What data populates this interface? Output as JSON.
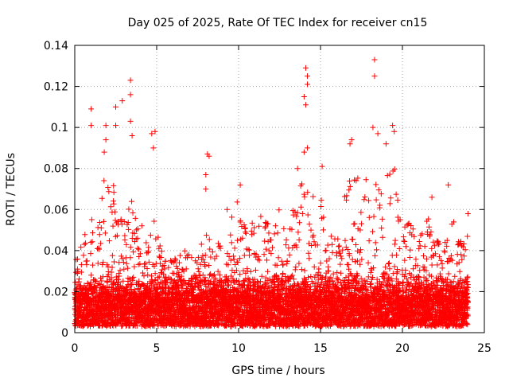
{
  "chart_data": {
    "type": "scatter",
    "title": "Day 025 of 2025, Rate Of TEC Index for receiver cn15",
    "xlabel": "GPS time / hours",
    "ylabel": "ROTI / TECUs",
    "xlim": [
      0,
      25
    ],
    "ylim": [
      0,
      0.14
    ],
    "xticks": [
      0,
      5,
      10,
      15,
      20,
      25
    ],
    "yticks": [
      0,
      0.02,
      0.04,
      0.06,
      0.08,
      0.1,
      0.12,
      0.14
    ],
    "xtick_labels": [
      "0",
      "5",
      "10",
      "15",
      "20",
      "25"
    ],
    "ytick_labels": [
      "0",
      "0.02",
      "0.04",
      "0.06",
      "0.08",
      "0.1",
      "0.12",
      "0.14"
    ],
    "grid": true,
    "marker": "+",
    "marker_color": "#ff0000",
    "data_range_hours": [
      0,
      24
    ],
    "baseline_roti": [
      0.003,
      0.025
    ],
    "notable_points": [
      {
        "x": 1.0,
        "y": 0.109
      },
      {
        "x": 1.0,
        "y": 0.101
      },
      {
        "x": 1.9,
        "y": 0.101
      },
      {
        "x": 1.9,
        "y": 0.094
      },
      {
        "x": 1.8,
        "y": 0.088
      },
      {
        "x": 2.5,
        "y": 0.11
      },
      {
        "x": 2.5,
        "y": 0.101
      },
      {
        "x": 2.9,
        "y": 0.113
      },
      {
        "x": 3.4,
        "y": 0.123
      },
      {
        "x": 3.4,
        "y": 0.116
      },
      {
        "x": 3.4,
        "y": 0.103
      },
      {
        "x": 3.5,
        "y": 0.096
      },
      {
        "x": 4.7,
        "y": 0.097
      },
      {
        "x": 4.9,
        "y": 0.098
      },
      {
        "x": 4.8,
        "y": 0.09
      },
      {
        "x": 8.1,
        "y": 0.087
      },
      {
        "x": 8.2,
        "y": 0.086
      },
      {
        "x": 8.0,
        "y": 0.077
      },
      {
        "x": 8.0,
        "y": 0.07
      },
      {
        "x": 10.1,
        "y": 0.072
      },
      {
        "x": 9.3,
        "y": 0.06
      },
      {
        "x": 14.1,
        "y": 0.129
      },
      {
        "x": 14.2,
        "y": 0.125
      },
      {
        "x": 14.2,
        "y": 0.121
      },
      {
        "x": 14.0,
        "y": 0.115
      },
      {
        "x": 14.1,
        "y": 0.111
      },
      {
        "x": 14.0,
        "y": 0.088
      },
      {
        "x": 14.2,
        "y": 0.09
      },
      {
        "x": 13.6,
        "y": 0.08
      },
      {
        "x": 15.1,
        "y": 0.081
      },
      {
        "x": 16.8,
        "y": 0.092
      },
      {
        "x": 16.9,
        "y": 0.094
      },
      {
        "x": 18.3,
        "y": 0.133
      },
      {
        "x": 18.3,
        "y": 0.125
      },
      {
        "x": 18.2,
        "y": 0.1
      },
      {
        "x": 18.5,
        "y": 0.097
      },
      {
        "x": 19.4,
        "y": 0.101
      },
      {
        "x": 19.5,
        "y": 0.098
      },
      {
        "x": 19.0,
        "y": 0.092
      },
      {
        "x": 21.8,
        "y": 0.066
      },
      {
        "x": 22.8,
        "y": 0.072
      },
      {
        "x": 24.0,
        "y": 0.058
      }
    ],
    "activity_envelope": [
      {
        "x": 0.0,
        "y": 0.036
      },
      {
        "x": 0.5,
        "y": 0.044
      },
      {
        "x": 1.0,
        "y": 0.06
      },
      {
        "x": 1.5,
        "y": 0.06
      },
      {
        "x": 2.0,
        "y": 0.085
      },
      {
        "x": 2.5,
        "y": 0.072
      },
      {
        "x": 3.0,
        "y": 0.055
      },
      {
        "x": 3.5,
        "y": 0.065
      },
      {
        "x": 4.0,
        "y": 0.05
      },
      {
        "x": 4.5,
        "y": 0.065
      },
      {
        "x": 5.0,
        "y": 0.055
      },
      {
        "x": 5.5,
        "y": 0.04
      },
      {
        "x": 6.0,
        "y": 0.035
      },
      {
        "x": 6.5,
        "y": 0.04
      },
      {
        "x": 7.0,
        "y": 0.04
      },
      {
        "x": 7.5,
        "y": 0.042
      },
      {
        "x": 8.0,
        "y": 0.05
      },
      {
        "x": 8.5,
        "y": 0.042
      },
      {
        "x": 9.0,
        "y": 0.045
      },
      {
        "x": 9.5,
        "y": 0.058
      },
      {
        "x": 10.0,
        "y": 0.068
      },
      {
        "x": 10.5,
        "y": 0.048
      },
      {
        "x": 11.0,
        "y": 0.057
      },
      {
        "x": 11.5,
        "y": 0.06
      },
      {
        "x": 12.0,
        "y": 0.052
      },
      {
        "x": 12.5,
        "y": 0.062
      },
      {
        "x": 13.0,
        "y": 0.045
      },
      {
        "x": 13.5,
        "y": 0.07
      },
      {
        "x": 14.0,
        "y": 0.075
      },
      {
        "x": 14.5,
        "y": 0.068
      },
      {
        "x": 15.0,
        "y": 0.07
      },
      {
        "x": 15.5,
        "y": 0.05
      },
      {
        "x": 16.0,
        "y": 0.045
      },
      {
        "x": 16.5,
        "y": 0.068
      },
      {
        "x": 17.0,
        "y": 0.082
      },
      {
        "x": 17.5,
        "y": 0.078
      },
      {
        "x": 18.0,
        "y": 0.08
      },
      {
        "x": 18.5,
        "y": 0.085
      },
      {
        "x": 19.0,
        "y": 0.078
      },
      {
        "x": 19.5,
        "y": 0.085
      },
      {
        "x": 20.0,
        "y": 0.05
      },
      {
        "x": 20.5,
        "y": 0.055
      },
      {
        "x": 21.0,
        "y": 0.045
      },
      {
        "x": 21.5,
        "y": 0.06
      },
      {
        "x": 22.0,
        "y": 0.048
      },
      {
        "x": 22.5,
        "y": 0.04
      },
      {
        "x": 23.0,
        "y": 0.06
      },
      {
        "x": 23.5,
        "y": 0.045
      },
      {
        "x": 24.0,
        "y": 0.055
      }
    ]
  }
}
